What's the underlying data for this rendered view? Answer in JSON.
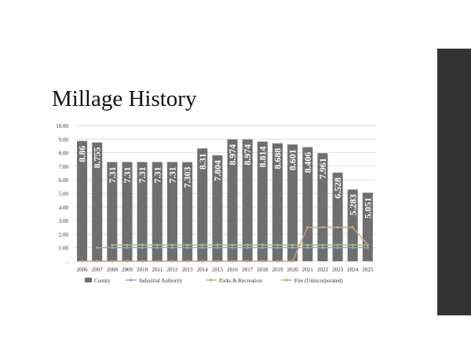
{
  "slide": {
    "title": "Millage History"
  },
  "chart_data": {
    "type": "bar",
    "title": "",
    "xlabel": "",
    "ylabel": "",
    "categories": [
      "2006",
      "2007",
      "2008",
      "2009",
      "2010",
      "2011",
      "2012",
      "2013",
      "2014",
      "2015",
      "2016",
      "2017",
      "2018",
      "2019",
      "2020",
      "2021",
      "2022",
      "2023",
      "2024",
      "2025"
    ],
    "ylim": [
      0,
      10
    ],
    "yticks": [
      0,
      1,
      2,
      3,
      4,
      5,
      6,
      7,
      8,
      9,
      10
    ],
    "ytick_labels": [
      "-",
      "1.00",
      "2.00",
      "3.00",
      "4.00",
      "5.00",
      "6.00",
      "7.00",
      "8.00",
      "9.00",
      "10.00"
    ],
    "grid": true,
    "legend_position": "bottom",
    "series": [
      {
        "name": "County",
        "kind": "bar",
        "color": "#6f6f6f",
        "values": [
          8.86,
          8.755,
          7.31,
          7.31,
          7.31,
          7.31,
          7.31,
          7.303,
          8.31,
          7.804,
          8.974,
          8.974,
          8.814,
          8.688,
          8.601,
          8.406,
          7.961,
          6.528,
          5.283,
          5.051
        ],
        "labels": [
          "8.86",
          "8.755",
          "7.31",
          "7.31",
          "7.31",
          "7.31",
          "7.31",
          "7.303",
          "8.31",
          "7.804",
          "8.974",
          "8.974",
          "8.814",
          "8.688",
          "8.601",
          "8.406",
          "7.961",
          "6.528",
          "5.283",
          "5.051"
        ]
      },
      {
        "name": "Industrial Authority",
        "kind": "line",
        "color": "#8fa9c8",
        "values": [
          null,
          1.0,
          1.0,
          1.0,
          1.0,
          1.0,
          1.0,
          1.0,
          1.0,
          1.0,
          1.0,
          1.0,
          1.0,
          1.0,
          1.0,
          1.0,
          1.0,
          1.0,
          1.0,
          1.0
        ]
      },
      {
        "name": "Parks & Recreation",
        "kind": "line",
        "color": "#a9b88a",
        "values": [
          null,
          null,
          1.2,
          1.2,
          1.2,
          1.2,
          1.2,
          1.2,
          1.2,
          1.2,
          1.2,
          1.2,
          1.2,
          1.2,
          1.2,
          1.2,
          1.2,
          1.2,
          1.2,
          1.2
        ]
      },
      {
        "name": "Fire (Unincorporated)",
        "kind": "line",
        "color": "#c9a57c",
        "values": [
          0,
          0,
          0,
          0,
          0,
          0,
          0,
          0,
          0,
          0,
          0,
          0,
          0,
          0,
          0,
          2.5,
          2.5,
          2.5,
          2.5,
          1.2
        ]
      }
    ]
  }
}
